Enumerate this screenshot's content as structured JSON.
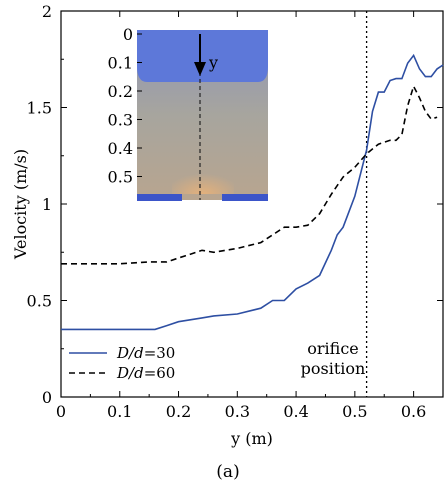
{
  "chart_data": {
    "type": "line",
    "xlabel": "y  (m)",
    "ylabel": "Velocity (m/s)",
    "xlim": [
      0,
      0.65
    ],
    "ylim": [
      0,
      2
    ],
    "xticks": [
      "0",
      "0.1",
      "0.2",
      "0.3",
      "0.4",
      "0.5",
      "0.6"
    ],
    "yticks": [
      "0",
      "0.5",
      "1",
      "1.5",
      "2"
    ],
    "grid": false,
    "legend_position": "lower-left",
    "caption": "(a)",
    "annotation": {
      "text_line1": "orifice",
      "text_line2": "position",
      "x": 0.52
    },
    "series": [
      {
        "name": "D/d=30",
        "legend_parts": [
          "D/d",
          "=30"
        ],
        "color": "#2e4fa3",
        "dash": "solid",
        "x": [
          0,
          0.05,
          0.1,
          0.15,
          0.16,
          0.18,
          0.2,
          0.24,
          0.26,
          0.3,
          0.34,
          0.36,
          0.38,
          0.4,
          0.42,
          0.44,
          0.46,
          0.47,
          0.48,
          0.5,
          0.52,
          0.53,
          0.54,
          0.55,
          0.56,
          0.57,
          0.58,
          0.59,
          0.6,
          0.61,
          0.62,
          0.63,
          0.64,
          0.65
        ],
        "y": [
          0.35,
          0.35,
          0.35,
          0.35,
          0.35,
          0.37,
          0.39,
          0.41,
          0.42,
          0.43,
          0.46,
          0.5,
          0.5,
          0.56,
          0.59,
          0.63,
          0.76,
          0.84,
          0.88,
          1.04,
          1.28,
          1.48,
          1.58,
          1.58,
          1.64,
          1.65,
          1.65,
          1.73,
          1.77,
          1.7,
          1.66,
          1.66,
          1.7,
          1.72
        ]
      },
      {
        "name": "D/d=60",
        "legend_parts": [
          "D/d",
          "=60"
        ],
        "color": "#000000",
        "dash": "dashed",
        "x": [
          0,
          0.05,
          0.1,
          0.15,
          0.18,
          0.2,
          0.22,
          0.24,
          0.26,
          0.28,
          0.3,
          0.34,
          0.36,
          0.38,
          0.4,
          0.42,
          0.44,
          0.46,
          0.48,
          0.5,
          0.52,
          0.54,
          0.56,
          0.57,
          0.58,
          0.59,
          0.6,
          0.61,
          0.62,
          0.63,
          0.64
        ],
        "y": [
          0.69,
          0.69,
          0.69,
          0.7,
          0.7,
          0.72,
          0.74,
          0.76,
          0.75,
          0.76,
          0.77,
          0.8,
          0.84,
          0.88,
          0.88,
          0.89,
          0.95,
          1.05,
          1.14,
          1.19,
          1.26,
          1.31,
          1.33,
          1.33,
          1.36,
          1.51,
          1.61,
          1.55,
          1.48,
          1.44,
          1.45
        ]
      }
    ],
    "inset": {
      "yticks": [
        "0",
        "0.1",
        "0.2",
        "0.3",
        "0.4",
        "0.5"
      ],
      "arrow_label": "y",
      "image_desc": "granular silo simulation snapshot"
    }
  }
}
